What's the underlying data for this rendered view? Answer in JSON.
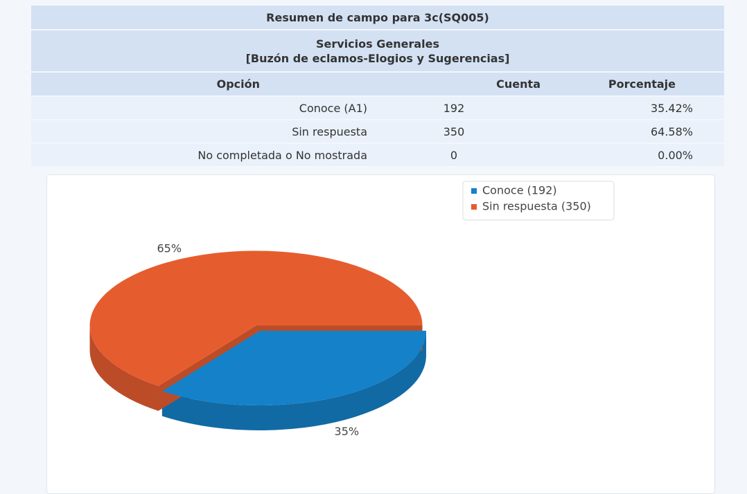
{
  "table": {
    "title": "Resumen de campo para 3c(SQ005)",
    "subtitle": [
      "Servicios Generales",
      "[Buzón de eclamos-Elogios y Sugerencias]"
    ],
    "headers": [
      "Opción",
      "Cuenta",
      "Porcentaje"
    ],
    "rows": [
      [
        "Conoce (A1)",
        "192",
        "35.42%"
      ],
      [
        "Sin respuesta",
        "350",
        "64.58%"
      ],
      [
        "No completada o No mostrada",
        "0",
        "0.00%"
      ]
    ]
  },
  "chart_data": {
    "type": "pie",
    "categories": [
      "Conoce (192)",
      "Sin respuesta (350)"
    ],
    "values": [
      35,
      65
    ],
    "value_labels": [
      "35%",
      "65%"
    ],
    "colors": [
      "#1581c8",
      "#e55d2f"
    ],
    "legend": "top-right"
  }
}
